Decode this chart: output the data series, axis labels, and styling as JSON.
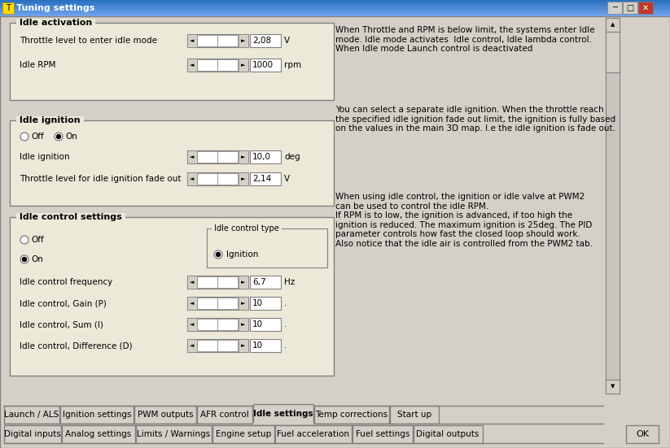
{
  "title": "Tuning settings",
  "bg_color": "#d4d0c8",
  "title_bar_bg": "#1e5faa",
  "title_bar_text": "Tuning settings",
  "content_bg": "#ece9d8",
  "section1_title": "Idle activation",
  "section1_row1_label": "Throttle level to enter idle mode",
  "section1_row1_value": "2,08",
  "section1_row1_unit": "V",
  "section1_row2_label": "Idle RPM",
  "section1_row2_value": "1000",
  "section1_row2_unit": "rpm",
  "section2_title": "Idle ignition",
  "section2_radio1": "Off",
  "section2_radio2": "On",
  "section2_row1_label": "Idle ignition",
  "section2_row1_value": "10,0",
  "section2_row1_unit": "deg",
  "section2_row2_label": "Throttle level for idle ignition fade out",
  "section2_row2_value": "2,14",
  "section2_row2_unit": "V",
  "section3_title": "Idle control settings",
  "section3_box_title": "Idle control type",
  "section3_box_value": "Ignition",
  "section3_radio1": "Off",
  "section3_radio2": "On",
  "section3_row1_label": "Idle control frequency",
  "section3_row1_value": "6,7",
  "section3_row1_unit": "Hz",
  "section3_row2_label": "Idle control, Gain (P)",
  "section3_row2_value": "10",
  "section3_row2_unit": ".",
  "section3_row3_label": "Idle control, Sum (I)",
  "section3_row3_value": "10",
  "section3_row3_unit": ".",
  "section3_row4_label": "Idle control, Difference (D)",
  "section3_row4_value": "10",
  "section3_row4_unit": ".",
  "text_right1": "When Throttle and RPM is below limit, the systems enter Idle\nmode. Idle mode activates  Idle control, Idle lambda control.\nWhen Idle mode Launch control is deactivated",
  "text_right2": "You can select a separate idle ignition. When the throttle reach\nthe specified idle ignition fade out limit, the ignition is fully based\non the values in the main 3D map. I.e the idle ignition is fade out.",
  "text_right3": "When using idle control, the ignition or idle valve at PWM2\ncan be used to control the idle RPM.\nIf RPM is to low, the ignition is advanced, if too high the\nignition is reduced. The maximum ignition is 25deg. The PID\nparameter controls how fast the closed loop should work.\nAlso notice that the idle air is controlled from the PWM2 tab.",
  "tabs_bottom1": [
    "Launch / ALS",
    "Ignition settings",
    "PWM outputs",
    "AFR control",
    "Idle settings",
    "Temp corrections",
    "Start up"
  ],
  "tabs_bottom2": [
    "Digital inputs",
    "Analog settings",
    "Limits / Warnings",
    "Engine setup",
    "Fuel acceleration",
    "Fuel settings",
    "Digital outputs"
  ],
  "active_tab": "Idle settings",
  "ok_button": "OK"
}
